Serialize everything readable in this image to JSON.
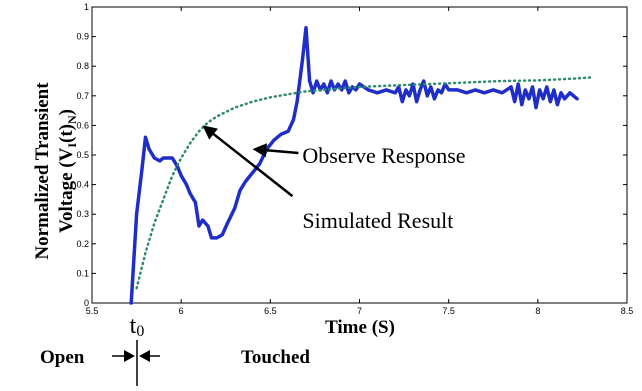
{
  "chart_data": {
    "type": "line",
    "title": "",
    "xlabel": "Time (S)",
    "ylabel_line1": "Normalized Transient",
    "ylabel_line2": "Voltage (V",
    "ylabel_sub1": "I",
    "ylabel_mid": "(t)",
    "ylabel_sub2": "N",
    "ylabel_end": ")",
    "xlim": [
      5.5,
      8.5
    ],
    "ylim": [
      0,
      1
    ],
    "xticks": [
      "5.5",
      "6",
      "6.5",
      "7",
      "7.5",
      "8",
      "8.5"
    ],
    "yticks": [
      "0",
      "0.1",
      "0.2",
      "0.3",
      "0.4",
      "0.5",
      "0.6",
      "0.7",
      "0.8",
      "0.9",
      "1"
    ],
    "grid": false,
    "series": [
      {
        "name": "Observe Response",
        "color": "#1f2ec8",
        "style": "solid",
        "x": [
          5.72,
          5.75,
          5.78,
          5.8,
          5.82,
          5.85,
          5.88,
          5.9,
          5.93,
          5.95,
          5.98,
          6.0,
          6.03,
          6.05,
          6.08,
          6.1,
          6.12,
          6.15,
          6.17,
          6.2,
          6.23,
          6.26,
          6.3,
          6.33,
          6.36,
          6.4,
          6.44,
          6.48,
          6.52,
          6.56,
          6.6,
          6.63,
          6.65,
          6.68,
          6.7,
          6.72,
          6.74,
          6.76,
          6.78,
          6.8,
          6.82,
          6.84,
          6.86,
          6.88,
          6.9,
          6.92,
          6.94,
          6.96,
          6.98,
          7.0,
          7.05,
          7.1,
          7.15,
          7.2,
          7.22,
          7.24,
          7.26,
          7.28,
          7.3,
          7.32,
          7.34,
          7.36,
          7.38,
          7.4,
          7.42,
          7.44,
          7.46,
          7.48,
          7.5,
          7.55,
          7.6,
          7.65,
          7.7,
          7.75,
          7.8,
          7.85,
          7.87,
          7.89,
          7.91,
          7.93,
          7.95,
          7.97,
          7.99,
          8.01,
          8.03,
          8.05,
          8.07,
          8.09,
          8.11,
          8.13,
          8.15,
          8.18,
          8.22
        ],
        "y": [
          0.0,
          0.3,
          0.45,
          0.56,
          0.52,
          0.49,
          0.48,
          0.49,
          0.49,
          0.49,
          0.46,
          0.43,
          0.4,
          0.37,
          0.34,
          0.26,
          0.28,
          0.26,
          0.22,
          0.22,
          0.23,
          0.27,
          0.32,
          0.38,
          0.41,
          0.44,
          0.47,
          0.52,
          0.55,
          0.57,
          0.58,
          0.62,
          0.68,
          0.82,
          0.93,
          0.75,
          0.71,
          0.75,
          0.72,
          0.74,
          0.71,
          0.75,
          0.72,
          0.74,
          0.72,
          0.75,
          0.71,
          0.73,
          0.72,
          0.74,
          0.72,
          0.71,
          0.72,
          0.71,
          0.73,
          0.68,
          0.72,
          0.7,
          0.74,
          0.68,
          0.72,
          0.75,
          0.7,
          0.73,
          0.69,
          0.72,
          0.71,
          0.74,
          0.72,
          0.72,
          0.71,
          0.72,
          0.71,
          0.72,
          0.71,
          0.73,
          0.68,
          0.74,
          0.67,
          0.72,
          0.69,
          0.73,
          0.66,
          0.72,
          0.69,
          0.73,
          0.68,
          0.72,
          0.67,
          0.71,
          0.69,
          0.71,
          0.69
        ]
      },
      {
        "name": "Simulated Result",
        "color": "#2e8b6e",
        "style": "dotted",
        "x": [
          5.75,
          5.8,
          5.85,
          5.9,
          5.95,
          6.0,
          6.05,
          6.1,
          6.15,
          6.2,
          6.3,
          6.4,
          6.5,
          6.6,
          6.7,
          6.8,
          6.9,
          7.0,
          7.2,
          7.4,
          7.6,
          7.8,
          8.0,
          8.2,
          8.3
        ],
        "y": [
          0.05,
          0.17,
          0.27,
          0.35,
          0.43,
          0.49,
          0.54,
          0.58,
          0.61,
          0.63,
          0.66,
          0.68,
          0.695,
          0.705,
          0.715,
          0.72,
          0.725,
          0.73,
          0.735,
          0.74,
          0.745,
          0.75,
          0.752,
          0.758,
          0.762
        ]
      }
    ],
    "annotations": [
      {
        "text": "Observe Response",
        "arrow_to": [
          6.4,
          0.52
        ],
        "text_at": [
          6.68,
          0.5
        ]
      },
      {
        "text": "Simulated Result",
        "arrow_to": [
          6.12,
          0.6
        ],
        "text_at": [
          6.68,
          0.28
        ]
      }
    ],
    "event_marker": {
      "label": "t",
      "label_sub": "0",
      "x": 5.74,
      "left_state": "Open",
      "right_state": "Touched"
    }
  }
}
